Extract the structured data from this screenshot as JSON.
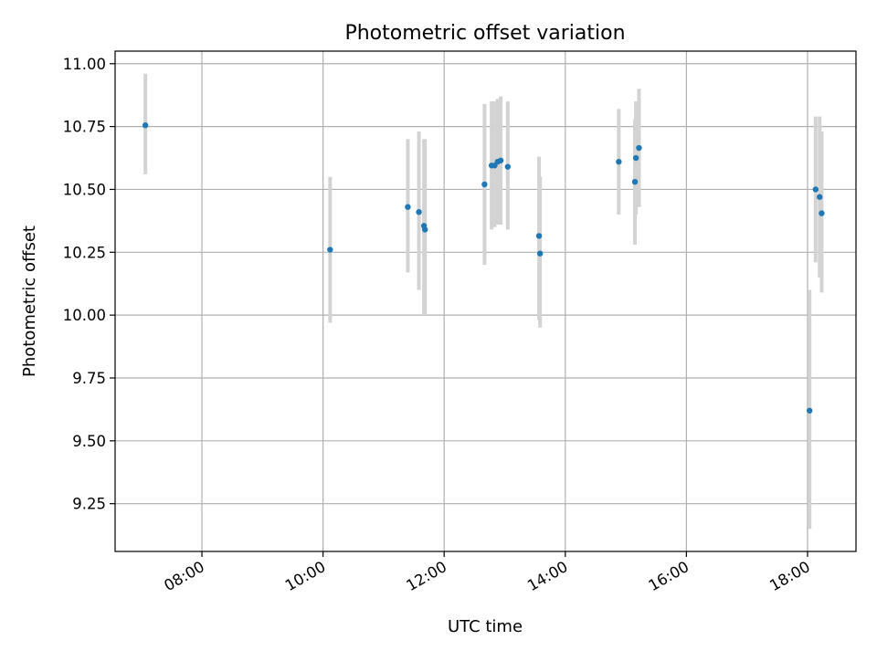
{
  "chart_data": {
    "type": "scatter",
    "title": "Photometric offset variation",
    "xlabel": "UTC time",
    "ylabel": "Photometric offset",
    "x_unit": "UTC time of day (HH:MM)",
    "xlim": [
      "06:34",
      "18:48"
    ],
    "ylim": [
      9.06,
      11.05
    ],
    "grid": true,
    "x_ticks": [
      "08:00",
      "10:00",
      "12:00",
      "14:00",
      "16:00",
      "18:00"
    ],
    "y_ticks": [
      9.25,
      9.5,
      9.75,
      10.0,
      10.25,
      10.5,
      10.75,
      11.0
    ],
    "y_tick_labels": [
      "9.25",
      "9.50",
      "9.75",
      "10.00",
      "10.25",
      "10.50",
      "10.75",
      "11.00"
    ],
    "colors": {
      "point": "#1f77b4",
      "errorbar": "#d3d3d3",
      "grid": "#b0b0b0"
    },
    "points": [
      {
        "x": "07:04",
        "y": 10.755,
        "ymin": 10.56,
        "ymax": 10.96
      },
      {
        "x": "10:07",
        "y": 10.26,
        "ymin": 9.97,
        "ymax": 10.55
      },
      {
        "x": "11:24",
        "y": 10.43,
        "ymin": 10.17,
        "ymax": 10.7
      },
      {
        "x": "11:35",
        "y": 10.41,
        "ymin": 10.1,
        "ymax": 10.73
      },
      {
        "x": "11:40",
        "y": 10.355,
        "ymin": 10.0,
        "ymax": 10.7
      },
      {
        "x": "11:41",
        "y": 10.34,
        "ymin": 10.0,
        "ymax": 10.7
      },
      {
        "x": "12:40",
        "y": 10.52,
        "ymin": 10.2,
        "ymax": 10.84
      },
      {
        "x": "12:47",
        "y": 10.595,
        "ymin": 10.34,
        "ymax": 10.85
      },
      {
        "x": "12:50",
        "y": 10.595,
        "ymin": 10.35,
        "ymax": 10.85
      },
      {
        "x": "12:53",
        "y": 10.61,
        "ymin": 10.36,
        "ymax": 10.86
      },
      {
        "x": "12:56",
        "y": 10.615,
        "ymin": 10.36,
        "ymax": 10.87
      },
      {
        "x": "13:03",
        "y": 10.59,
        "ymin": 10.34,
        "ymax": 10.85
      },
      {
        "x": "13:34",
        "y": 10.315,
        "ymin": 9.98,
        "ymax": 10.63
      },
      {
        "x": "13:35",
        "y": 10.245,
        "ymin": 9.95,
        "ymax": 10.55
      },
      {
        "x": "14:53",
        "y": 10.61,
        "ymin": 10.4,
        "ymax": 10.82
      },
      {
        "x": "15:09",
        "y": 10.53,
        "ymin": 10.28,
        "ymax": 10.78
      },
      {
        "x": "15:10",
        "y": 10.625,
        "ymin": 10.4,
        "ymax": 10.85
      },
      {
        "x": "15:13",
        "y": 10.665,
        "ymin": 10.43,
        "ymax": 10.9
      },
      {
        "x": "18:02",
        "y": 9.62,
        "ymin": 9.15,
        "ymax": 10.1
      },
      {
        "x": "18:08",
        "y": 10.5,
        "ymin": 10.21,
        "ymax": 10.79
      },
      {
        "x": "18:12",
        "y": 10.47,
        "ymin": 10.15,
        "ymax": 10.79
      },
      {
        "x": "18:14",
        "y": 10.405,
        "ymin": 10.09,
        "ymax": 10.73
      }
    ]
  }
}
